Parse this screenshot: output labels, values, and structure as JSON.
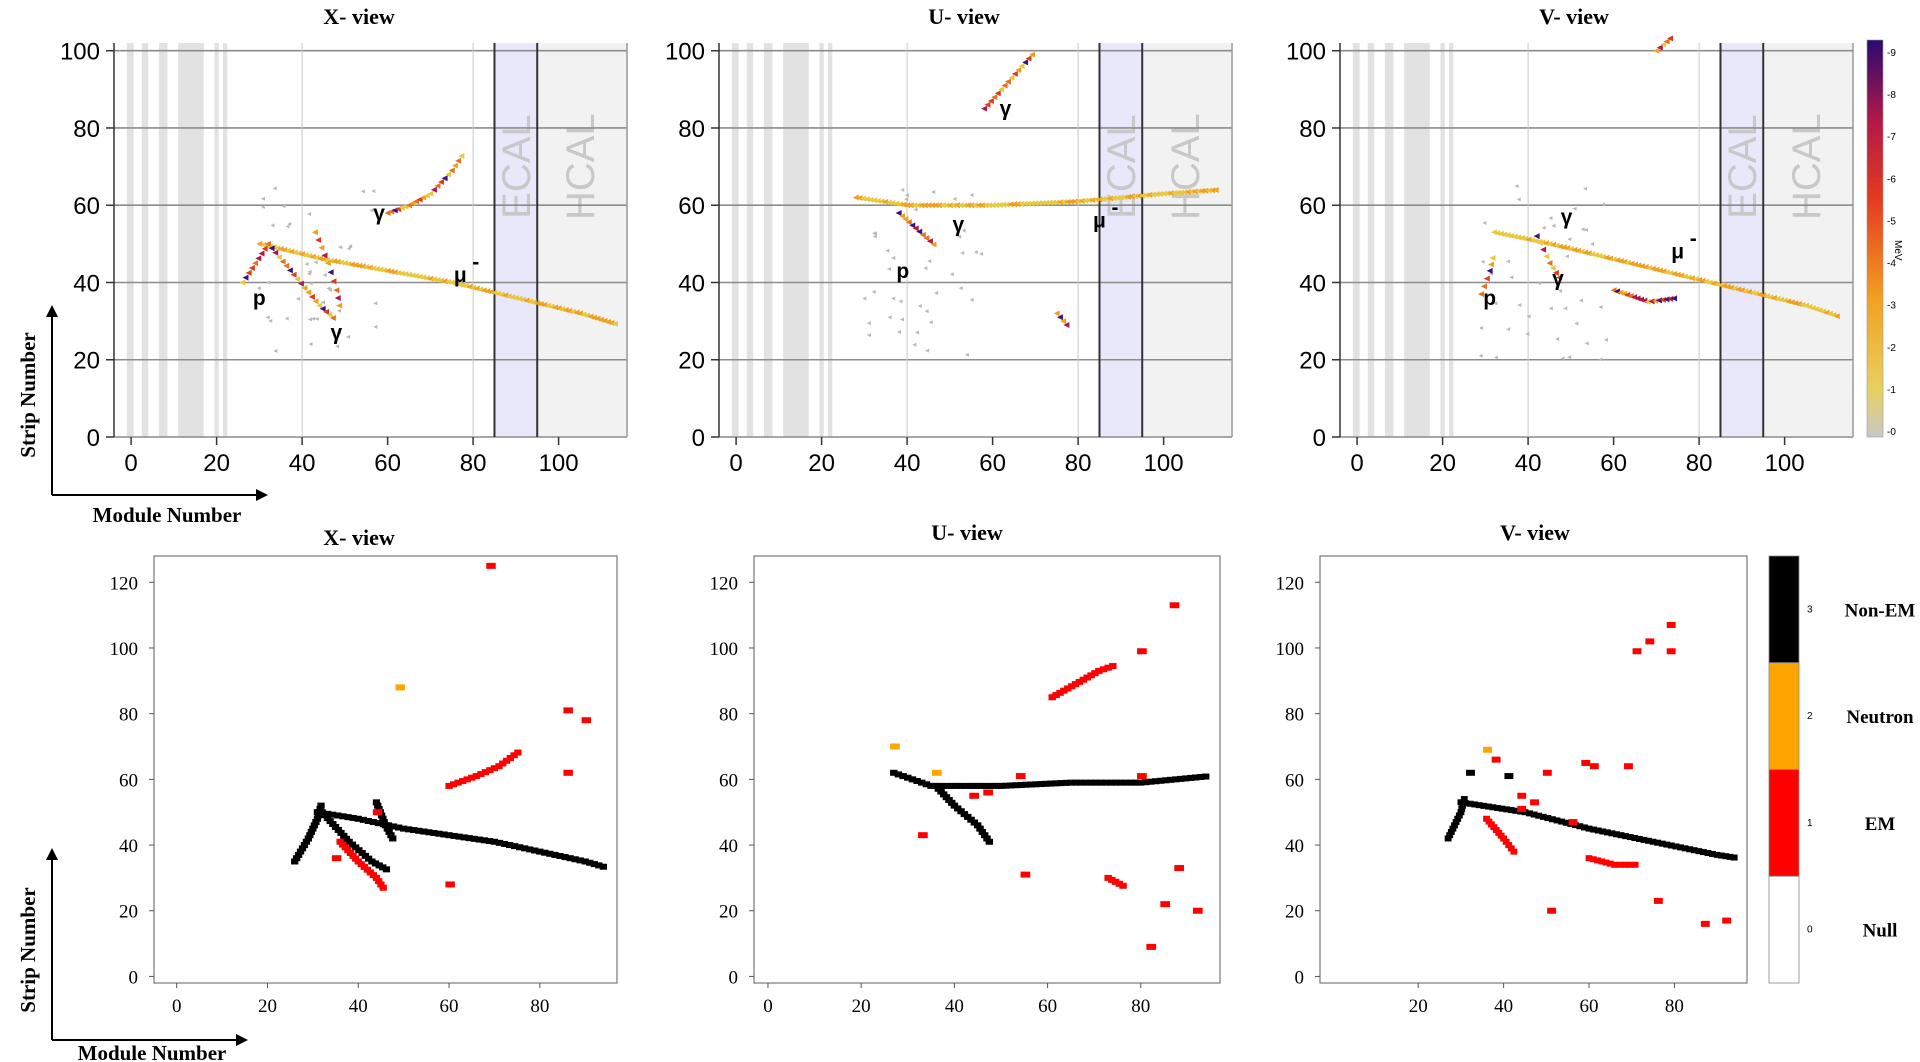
{
  "axis_labels": {
    "strip": "Strip Number",
    "module": "Module Number"
  },
  "detectors": {
    "ecal": "ECAL",
    "hcal": "HCAL"
  },
  "colorbar_top": {
    "unit": "MeV",
    "ticks": [
      "-0",
      "-1",
      "-2",
      "-3",
      "-4",
      "-5",
      "-6",
      "-7",
      "-8",
      "-9"
    ]
  },
  "colorbar_bottom": {
    "ticks": [
      "0",
      "1",
      "2",
      "3"
    ],
    "categories": [
      "Null",
      "EM",
      "Neutron",
      "Non-EM"
    ],
    "colors": [
      "#ffffff",
      "#ff0000",
      "#ffa500",
      "#000000"
    ]
  },
  "chart_data": [
    {
      "type": "scatter",
      "title": "X- view",
      "xlabel": "Module Number",
      "ylabel": "Strip Number",
      "xlim": [
        -4,
        116
      ],
      "ylim": [
        0,
        102
      ],
      "xticks": [
        0,
        20,
        40,
        60,
        80,
        100
      ],
      "yticks": [
        0,
        20,
        40,
        60,
        80,
        100
      ],
      "annotations": [
        {
          "text": "p",
          "x": 30,
          "y": 36
        },
        {
          "text": "γ",
          "x": 48,
          "y": 27
        },
        {
          "text": "γ",
          "x": 58,
          "y": 58
        },
        {
          "text": "μ",
          "x": 77,
          "y": 42,
          "sup": "-"
        }
      ],
      "tracks": [
        {
          "name": "muon",
          "points": [
            [
              30,
              50
            ],
            [
              45,
              46
            ],
            [
              60,
              43
            ],
            [
              75,
              40
            ],
            [
              90,
              36
            ],
            [
              105,
              32
            ],
            [
              114,
              29
            ]
          ]
        },
        {
          "name": "proton",
          "points": [
            [
              26,
              40
            ],
            [
              29,
              45
            ],
            [
              32,
              50
            ]
          ]
        },
        {
          "name": "gamma-low-1",
          "points": [
            [
              32,
              50
            ],
            [
              38,
              42
            ],
            [
              44,
              34
            ],
            [
              48,
              30
            ]
          ]
        },
        {
          "name": "gamma-low-2",
          "points": [
            [
              43,
              53
            ],
            [
              46,
              45
            ],
            [
              48,
              38
            ],
            [
              49,
              32
            ]
          ]
        },
        {
          "name": "gamma-up",
          "points": [
            [
              60,
              58
            ],
            [
              65,
              60
            ],
            [
              70,
              63
            ],
            [
              75,
              69
            ],
            [
              78,
              74
            ]
          ]
        }
      ]
    },
    {
      "type": "scatter",
      "title": "U- view",
      "xlabel": "Module Number",
      "ylabel": "Strip Number",
      "xlim": [
        -4,
        116
      ],
      "ylim": [
        0,
        102
      ],
      "xticks": [
        0,
        20,
        40,
        60,
        80,
        100
      ],
      "yticks": [
        0,
        20,
        40,
        60,
        80,
        100
      ],
      "annotations": [
        {
          "text": "p",
          "x": 39,
          "y": 43
        },
        {
          "text": "γ",
          "x": 52,
          "y": 55
        },
        {
          "text": "γ",
          "x": 63,
          "y": 85
        },
        {
          "text": "μ",
          "x": 85,
          "y": 56,
          "sup": "-"
        }
      ],
      "tracks": [
        {
          "name": "muon",
          "points": [
            [
              28,
              62
            ],
            [
              40,
              60
            ],
            [
              60,
              60
            ],
            [
              80,
              61
            ],
            [
              100,
              63
            ],
            [
              113,
              64
            ]
          ]
        },
        {
          "name": "proton",
          "points": [
            [
              38,
              58
            ],
            [
              42,
              54
            ],
            [
              47,
              49
            ]
          ]
        },
        {
          "name": "gamma-up",
          "points": [
            [
              58,
              85
            ],
            [
              62,
              90
            ],
            [
              66,
              95
            ],
            [
              70,
              100
            ]
          ]
        },
        {
          "name": "gamma-low",
          "points": [
            [
              75,
              32
            ],
            [
              78,
              28
            ]
          ]
        }
      ]
    },
    {
      "type": "scatter",
      "title": "V- view",
      "xlabel": "Module Number",
      "ylabel": "Strip Number",
      "xlim": [
        -4,
        116
      ],
      "ylim": [
        0,
        102
      ],
      "xticks": [
        0,
        20,
        40,
        60,
        80,
        100
      ],
      "yticks": [
        0,
        20,
        40,
        60,
        80,
        100
      ],
      "annotations": [
        {
          "text": "p",
          "x": 31,
          "y": 36
        },
        {
          "text": "γ",
          "x": 49,
          "y": 57
        },
        {
          "text": "γ",
          "x": 47,
          "y": 41
        },
        {
          "text": "μ",
          "x": 75,
          "y": 48,
          "sup": "-"
        }
      ],
      "tracks": [
        {
          "name": "muon",
          "points": [
            [
              32,
              53
            ],
            [
              45,
              50
            ],
            [
              60,
              46
            ],
            [
              75,
              42
            ],
            [
              90,
              38
            ],
            [
              105,
              34
            ],
            [
              113,
              31
            ]
          ]
        },
        {
          "name": "proton",
          "points": [
            [
              29,
              37
            ],
            [
              31,
              43
            ],
            [
              32,
              48
            ]
          ]
        },
        {
          "name": "gamma-1",
          "points": [
            [
              42,
              52
            ],
            [
              45,
              45
            ],
            [
              48,
              40
            ]
          ]
        },
        {
          "name": "gamma-2",
          "points": [
            [
              60,
              38
            ],
            [
              68,
              35
            ],
            [
              75,
              36
            ]
          ]
        },
        {
          "name": "gamma-3",
          "points": [
            [
              70,
              100
            ],
            [
              74,
              104
            ]
          ]
        }
      ]
    },
    {
      "type": "scatter",
      "title": "X- view",
      "xlabel": "Module Number",
      "ylabel": "Strip Number",
      "xlim": [
        -5,
        97
      ],
      "ylim": [
        -2,
        128
      ],
      "xticks": [
        0,
        20,
        40,
        60,
        80
      ],
      "yticks": [
        0,
        20,
        40,
        60,
        80,
        100,
        120
      ],
      "segments": [
        {
          "cls": 3,
          "points": [
            [
              26,
              35
            ],
            [
              29,
              42
            ],
            [
              31,
              48
            ],
            [
              32,
              53
            ]
          ]
        },
        {
          "cls": 3,
          "points": [
            [
              31,
              50
            ],
            [
              40,
              48
            ],
            [
              50,
              45
            ],
            [
              60,
              43
            ],
            [
              70,
              41
            ],
            [
              80,
              38
            ],
            [
              90,
              35
            ],
            [
              95,
              33
            ]
          ]
        },
        {
          "cls": 3,
          "points": [
            [
              32,
              50
            ],
            [
              38,
              41
            ],
            [
              43,
              35
            ],
            [
              47,
              32
            ]
          ]
        },
        {
          "cls": 3,
          "points": [
            [
              44,
              53
            ],
            [
              46,
              46
            ],
            [
              48,
              41
            ]
          ]
        },
        {
          "cls": 1,
          "points": [
            [
              36,
              41
            ],
            [
              40,
              35
            ],
            [
              44,
              30
            ],
            [
              46,
              26
            ]
          ]
        },
        {
          "cls": 1,
          "points": [
            [
              60,
              58
            ],
            [
              66,
              61
            ],
            [
              71,
              64
            ],
            [
              76,
              69
            ]
          ]
        }
      ],
      "points": [
        {
          "cls": 1,
          "x": 69,
          "y": 125
        },
        {
          "cls": 2,
          "x": 49,
          "y": 88
        },
        {
          "cls": 1,
          "x": 86,
          "y": 81
        },
        {
          "cls": 1,
          "x": 90,
          "y": 78
        },
        {
          "cls": 1,
          "x": 86,
          "y": 62
        },
        {
          "cls": 1,
          "x": 60,
          "y": 28
        },
        {
          "cls": 1,
          "x": 44,
          "y": 50
        },
        {
          "cls": 1,
          "x": 35,
          "y": 36
        }
      ]
    },
    {
      "type": "scatter",
      "title": "U- view",
      "xlabel": "Module Number",
      "ylabel": "Strip Number",
      "xlim": [
        -3,
        97
      ],
      "ylim": [
        -2,
        128
      ],
      "xticks": [
        0,
        20,
        40,
        60,
        80
      ],
      "yticks": [
        0,
        20,
        40,
        60,
        80,
        100,
        120
      ],
      "segments": [
        {
          "cls": 3,
          "points": [
            [
              27,
              62
            ],
            [
              35,
              58
            ],
            [
              50,
              58
            ],
            [
              65,
              59
            ],
            [
              80,
              59
            ],
            [
              95,
              61
            ]
          ]
        },
        {
          "cls": 3,
          "points": [
            [
              36,
              58
            ],
            [
              40,
              52
            ],
            [
              45,
              46
            ],
            [
              48,
              40
            ]
          ]
        },
        {
          "cls": 1,
          "points": [
            [
              61,
              85
            ],
            [
              66,
              89
            ],
            [
              71,
              93
            ],
            [
              75,
              95
            ]
          ]
        },
        {
          "cls": 1,
          "points": [
            [
              73,
              30
            ],
            [
              77,
              27
            ]
          ]
        }
      ],
      "points": [
        {
          "cls": 2,
          "x": 27,
          "y": 70
        },
        {
          "cls": 2,
          "x": 36,
          "y": 62
        },
        {
          "cls": 1,
          "x": 80,
          "y": 99
        },
        {
          "cls": 1,
          "x": 87,
          "y": 113
        },
        {
          "cls": 1,
          "x": 54,
          "y": 61
        },
        {
          "cls": 1,
          "x": 80,
          "y": 61
        },
        {
          "cls": 1,
          "x": 33,
          "y": 43
        },
        {
          "cls": 1,
          "x": 55,
          "y": 31
        },
        {
          "cls": 1,
          "x": 88,
          "y": 33
        },
        {
          "cls": 1,
          "x": 82,
          "y": 9
        },
        {
          "cls": 1,
          "x": 85,
          "y": 22
        },
        {
          "cls": 1,
          "x": 92,
          "y": 20
        },
        {
          "cls": 1,
          "x": 44,
          "y": 55
        },
        {
          "cls": 1,
          "x": 47,
          "y": 56
        }
      ]
    },
    {
      "type": "scatter",
      "title": "V- view",
      "xlabel": "Module Number",
      "ylabel": "Strip Number",
      "xlim": [
        -3,
        97
      ],
      "ylim": [
        -2,
        128
      ],
      "xticks": [
        20,
        40,
        60,
        80
      ],
      "yticks": [
        0,
        20,
        40,
        60,
        80,
        100,
        120
      ],
      "segments": [
        {
          "cls": 3,
          "points": [
            [
              27,
              42
            ],
            [
              30,
              50
            ],
            [
              31,
              55
            ]
          ]
        },
        {
          "cls": 3,
          "points": [
            [
              30,
              53
            ],
            [
              45,
              50
            ],
            [
              60,
              45
            ],
            [
              75,
              41
            ],
            [
              90,
              37
            ],
            [
              95,
              36
            ]
          ]
        },
        {
          "cls": 1,
          "points": [
            [
              36,
              48
            ],
            [
              40,
              42
            ],
            [
              43,
              37
            ]
          ]
        },
        {
          "cls": 1,
          "points": [
            [
              60,
              36
            ],
            [
              66,
              34
            ],
            [
              72,
              34
            ]
          ]
        }
      ],
      "points": [
        {
          "cls": 2,
          "x": 36,
          "y": 69
        },
        {
          "cls": 3,
          "x": 41,
          "y": 61
        },
        {
          "cls": 3,
          "x": 32,
          "y": 62
        },
        {
          "cls": 1,
          "x": 38,
          "y": 66
        },
        {
          "cls": 1,
          "x": 50,
          "y": 62
        },
        {
          "cls": 1,
          "x": 59,
          "y": 65
        },
        {
          "cls": 1,
          "x": 61,
          "y": 64
        },
        {
          "cls": 1,
          "x": 69,
          "y": 64
        },
        {
          "cls": 1,
          "x": 71,
          "y": 99
        },
        {
          "cls": 1,
          "x": 74,
          "y": 102
        },
        {
          "cls": 1,
          "x": 79,
          "y": 107
        },
        {
          "cls": 1,
          "x": 79,
          "y": 99
        },
        {
          "cls": 1,
          "x": 44,
          "y": 55
        },
        {
          "cls": 1,
          "x": 47,
          "y": 53
        },
        {
          "cls": 1,
          "x": 44,
          "y": 51
        },
        {
          "cls": 1,
          "x": 51,
          "y": 20
        },
        {
          "cls": 1,
          "x": 76,
          "y": 23
        },
        {
          "cls": 1,
          "x": 87,
          "y": 16
        },
        {
          "cls": 1,
          "x": 92,
          "y": 17
        },
        {
          "cls": 1,
          "x": 56,
          "y": 47
        }
      ]
    }
  ]
}
